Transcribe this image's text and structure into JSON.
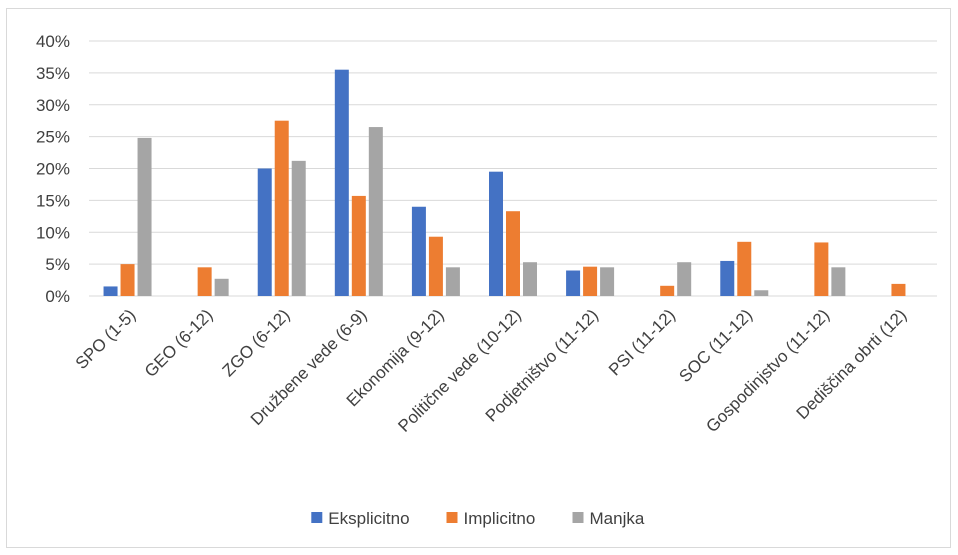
{
  "chart_data": {
    "type": "bar",
    "categories": [
      "SPO (1-5)",
      "GEO (6-12)",
      "ZGO (6-12)",
      "Družbene vede (6-9)",
      "Ekonomija (9-12)",
      "Politične vede (10-12)",
      "Podjetništvo (11-12)",
      "PSI (11-12)",
      "SOC (11-12)",
      "Gospodinjstvo (11-12)",
      "Dediščina obrti (12)"
    ],
    "series": [
      {
        "name": "Eksplicitno",
        "color": "#4472C4",
        "values": [
          1.5,
          0,
          20.0,
          35.5,
          14.0,
          19.5,
          4.0,
          0,
          5.5,
          0,
          0
        ]
      },
      {
        "name": "Implicitno",
        "color": "#ED7D31",
        "values": [
          5.0,
          4.5,
          27.5,
          15.7,
          9.3,
          13.3,
          4.6,
          1.6,
          8.5,
          8.4,
          1.9
        ]
      },
      {
        "name": "Manjka",
        "color": "#A5A5A5",
        "values": [
          24.8,
          2.7,
          21.2,
          26.5,
          4.5,
          5.3,
          4.5,
          5.3,
          0.9,
          4.5,
          0
        ]
      }
    ],
    "yticks": [
      "0%",
      "5%",
      "10%",
      "15%",
      "20%",
      "25%",
      "30%",
      "35%",
      "40%"
    ],
    "ylim": [
      0,
      40
    ],
    "grid": true,
    "legend_position": "bottom"
  }
}
